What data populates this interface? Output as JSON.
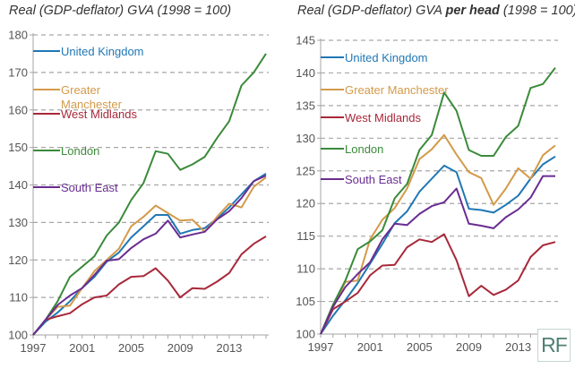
{
  "colors": {
    "United Kingdom": "#1f77b4",
    "Greater Manchester": "#d39a4a",
    "West Midlands": "#a8283a",
    "London": "#3a8a3a",
    "South East": "#6a2c91"
  },
  "logo": {
    "text": "RF"
  },
  "chart_data": [
    {
      "type": "line",
      "title_parts": [
        "Real (GDP-deflator) GVA ",
        "",
        "(1998 = 100)"
      ],
      "title": "Real (GDP-deflator) GVA (1998 = 100)",
      "xlabel": "",
      "ylabel": "",
      "ylim": [
        100,
        180
      ],
      "yticks": [
        100,
        110,
        120,
        130,
        140,
        150,
        160,
        170,
        180
      ],
      "xlim": [
        1997,
        2016
      ],
      "xticks": [
        1997,
        2001,
        2005,
        2009,
        2013
      ],
      "grid": true,
      "legend": "top-left",
      "x": [
        1997,
        1998,
        1999,
        2000,
        2001,
        2002,
        2003,
        2004,
        2005,
        2006,
        2007,
        2008,
        2009,
        2010,
        2011,
        2012,
        2013,
        2014,
        2015,
        2016
      ],
      "series": [
        {
          "name": "United Kingdom",
          "legend_lines": [
            "United Kingdom"
          ],
          "values": [
            100,
            103.5,
            106,
            109,
            112.5,
            115.5,
            119.5,
            122,
            126,
            129,
            132,
            132,
            127,
            128,
            128.5,
            131,
            134,
            137.5,
            141,
            143
          ]
        },
        {
          "name": "Greater Manchester",
          "legend_lines": [
            "Greater",
            "Manchester"
          ],
          "values": [
            100,
            104,
            107.5,
            107.8,
            112.5,
            117,
            120,
            123,
            129,
            131.5,
            134.5,
            132.5,
            130.5,
            130.7,
            127.5,
            131.5,
            135,
            134,
            139.5,
            142
          ]
        },
        {
          "name": "West Midlands",
          "legend_lines": [
            "West Midlands"
          ],
          "values": [
            100,
            104,
            105,
            105.8,
            108.2,
            110,
            110.5,
            113.5,
            115.5,
            115.7,
            117.8,
            114.5,
            110,
            112.5,
            112.3,
            114.2,
            116.5,
            121.5,
            124.3,
            126.3
          ]
        },
        {
          "name": "London",
          "legend_lines": [
            "London"
          ],
          "values": [
            100,
            104,
            109,
            115.5,
            118.2,
            121,
            126.5,
            130,
            136,
            140.5,
            149,
            148.3,
            144,
            145.5,
            147.5,
            152.5,
            157,
            166.5,
            170,
            175
          ]
        },
        {
          "name": "South East",
          "legend_lines": [
            "South East"
          ],
          "values": [
            100,
            104,
            108,
            110.5,
            112.5,
            116,
            119.8,
            120.2,
            123.2,
            125.5,
            127,
            130.5,
            126,
            126.8,
            127.5,
            130.8,
            133,
            136.5,
            141,
            142.5
          ]
        }
      ]
    },
    {
      "type": "line",
      "title_parts": [
        "Real (GDP-deflator) GVA ",
        "per head",
        " (1998 = 100)"
      ],
      "title": "Real (GDP-deflator) GVA per head (1998 = 100)",
      "xlabel": "",
      "ylabel": "",
      "ylim": [
        100,
        145
      ],
      "yticks": [
        100,
        105,
        110,
        115,
        120,
        125,
        130,
        135,
        140,
        145
      ],
      "xlim": [
        1997,
        2016
      ],
      "xticks": [
        1997,
        2001,
        2005,
        2009,
        2013
      ],
      "grid": true,
      "legend": "top-left",
      "x": [
        1997,
        1998,
        1999,
        2000,
        2001,
        2002,
        2003,
        2004,
        2005,
        2006,
        2007,
        2008,
        2009,
        2010,
        2011,
        2012,
        2013,
        2014,
        2015,
        2016
      ],
      "series": [
        {
          "name": "United Kingdom",
          "legend_lines": [
            "United Kingdom"
          ],
          "values": [
            100,
            102.8,
            105.2,
            107.8,
            110.8,
            113.8,
            117,
            118.8,
            121.8,
            123.8,
            125.8,
            124.8,
            119.2,
            119,
            118.6,
            119.8,
            121.2,
            123.8,
            126,
            127.2
          ]
        },
        {
          "name": "Greater Manchester",
          "legend_lines": [
            "Greater Manchester"
          ],
          "values": [
            100,
            104,
            108,
            108.2,
            114.5,
            117.5,
            119.3,
            122.3,
            126.8,
            128.3,
            130.5,
            127.5,
            124.8,
            123.9,
            119.8,
            122.3,
            125.4,
            123.8,
            127.4,
            128.9
          ]
        },
        {
          "name": "West Midlands",
          "legend_lines": [
            "West Midlands"
          ],
          "values": [
            100,
            103.8,
            105,
            106.3,
            109,
            110.5,
            110.6,
            113.3,
            114.5,
            114.1,
            115.3,
            111.3,
            105.8,
            107.4,
            106,
            106.8,
            108.2,
            111.8,
            113.6,
            114.1
          ]
        },
        {
          "name": "London",
          "legend_lines": [
            "London"
          ],
          "values": [
            100,
            104.5,
            108.2,
            113,
            114.2,
            115.9,
            120.8,
            123,
            128.2,
            130.5,
            137,
            134.2,
            128.2,
            127.3,
            127.3,
            130.2,
            131.9,
            137.7,
            138.3,
            140.8
          ]
        },
        {
          "name": "South East",
          "legend_lines": [
            "South East"
          ],
          "values": [
            100,
            104.2,
            107.2,
            109.2,
            111,
            114.5,
            116.9,
            116.7,
            118.4,
            119.6,
            120.2,
            122.3,
            116.9,
            116.6,
            116.2,
            117.9,
            119.1,
            120.9,
            124.2,
            124.2
          ]
        }
      ]
    }
  ]
}
